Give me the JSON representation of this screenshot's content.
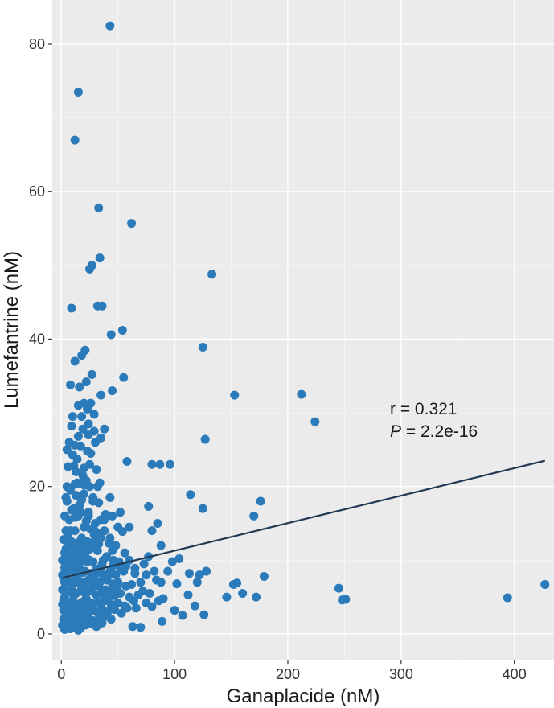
{
  "chart_data": {
    "type": "scatter",
    "xlabel": "Ganaplacide (nM)",
    "ylabel": "Lumefantrine (nM)",
    "xlim": [
      -8,
      435
    ],
    "ylim": [
      -3.5,
      86
    ],
    "x_ticks": [
      0,
      100,
      200,
      300,
      400
    ],
    "y_ticks": [
      0,
      20,
      40,
      60,
      80
    ],
    "grid": true,
    "legend": "none",
    "colors": {
      "panel": "#ebebeb",
      "grid": "#ffffff",
      "point": "#2b7bba",
      "trend": "#1f3a52",
      "text": "#333333"
    },
    "annotation": {
      "r_text": "r = 0.321",
      "p_label": "P",
      "p_value": " = 2.2e-16"
    },
    "trend_line": {
      "x": [
        1,
        427
      ],
      "y": [
        7.6,
        23.5
      ]
    },
    "points": [
      [
        43,
        82.5
      ],
      [
        15,
        73.5
      ],
      [
        12,
        67
      ],
      [
        62,
        55.7
      ],
      [
        33,
        57.8
      ],
      [
        34,
        51
      ],
      [
        27,
        50
      ],
      [
        25,
        49.5
      ],
      [
        133,
        48.8
      ],
      [
        9,
        44.2
      ],
      [
        32,
        44.5
      ],
      [
        36,
        44.5
      ],
      [
        44,
        40.6
      ],
      [
        54,
        41.2
      ],
      [
        125,
        38.9
      ],
      [
        21,
        38.5
      ],
      [
        18,
        37.8
      ],
      [
        12,
        37
      ],
      [
        22,
        34.2
      ],
      [
        55,
        34.8
      ],
      [
        45,
        33
      ],
      [
        35,
        32.4
      ],
      [
        153,
        32.4
      ],
      [
        212,
        32.5
      ],
      [
        20,
        31.3
      ],
      [
        26,
        31.3
      ],
      [
        23,
        30.5
      ],
      [
        10,
        29.5
      ],
      [
        224,
        28.8
      ],
      [
        24,
        28.5
      ],
      [
        9,
        28.2
      ],
      [
        19,
        27.8
      ],
      [
        29,
        27.5
      ],
      [
        15,
        26.8
      ],
      [
        35,
        26.6
      ],
      [
        127,
        26.4
      ],
      [
        7,
        26
      ],
      [
        30,
        26
      ],
      [
        17,
        25.5
      ],
      [
        26,
        24.5
      ],
      [
        58,
        23.4
      ],
      [
        80,
        23
      ],
      [
        87,
        23
      ],
      [
        96,
        23
      ],
      [
        11,
        22.8
      ],
      [
        25,
        23
      ],
      [
        13,
        22
      ],
      [
        19,
        21.5
      ],
      [
        22,
        20.8
      ],
      [
        5,
        20
      ],
      [
        12,
        20.3
      ],
      [
        14,
        20.5
      ],
      [
        17,
        20.4
      ],
      [
        20,
        20.2
      ],
      [
        25,
        20
      ],
      [
        34,
        20.5
      ],
      [
        114,
        18.9
      ],
      [
        43,
        18.5
      ],
      [
        5,
        18
      ],
      [
        18,
        18.2
      ],
      [
        28,
        18
      ],
      [
        33,
        17.8
      ],
      [
        77,
        17.3
      ],
      [
        125,
        17
      ],
      [
        176,
        18
      ],
      [
        170,
        16
      ],
      [
        45,
        16
      ],
      [
        38,
        15.5
      ],
      [
        52,
        16.5
      ],
      [
        9,
        16.8
      ],
      [
        15,
        16
      ],
      [
        22,
        15.3
      ],
      [
        30,
        15
      ],
      [
        85,
        15
      ],
      [
        60,
        14.5
      ],
      [
        26,
        14.2
      ],
      [
        50,
        14.5
      ],
      [
        54,
        13.9
      ],
      [
        80,
        14
      ],
      [
        4,
        14
      ],
      [
        12,
        14
      ],
      [
        18,
        13
      ],
      [
        23,
        12.5
      ],
      [
        29,
        13.5
      ],
      [
        35,
        13
      ],
      [
        42,
        12.3
      ],
      [
        6,
        12.5
      ],
      [
        10,
        12
      ],
      [
        15,
        11.5
      ],
      [
        20,
        11
      ],
      [
        25,
        11.5
      ],
      [
        32,
        11.3
      ],
      [
        56,
        11
      ],
      [
        88,
        12
      ],
      [
        3,
        11
      ],
      [
        8,
        10.5
      ],
      [
        13,
        10
      ],
      [
        17,
        9.8
      ],
      [
        22,
        10.3
      ],
      [
        28,
        9.8
      ],
      [
        36,
        9.5
      ],
      [
        40,
        10.5
      ],
      [
        46,
        10
      ],
      [
        51,
        9.8
      ],
      [
        60,
        10
      ],
      [
        77,
        10.5
      ],
      [
        98,
        9.8
      ],
      [
        104,
        10.2
      ],
      [
        3,
        9
      ],
      [
        7,
        8.8
      ],
      [
        11,
        8.5
      ],
      [
        16,
        8.8
      ],
      [
        21,
        8.5
      ],
      [
        26,
        8.2
      ],
      [
        31,
        8.8
      ],
      [
        37,
        8
      ],
      [
        43,
        8.5
      ],
      [
        48,
        8
      ],
      [
        55,
        8.5
      ],
      [
        65,
        8.2
      ],
      [
        75,
        8
      ],
      [
        82,
        8.5
      ],
      [
        113,
        8.2
      ],
      [
        122,
        8
      ],
      [
        128,
        8.5
      ],
      [
        179,
        7.8
      ],
      [
        2,
        7.5
      ],
      [
        6,
        7.3
      ],
      [
        10,
        7
      ],
      [
        14,
        7.5
      ],
      [
        19,
        7
      ],
      [
        24,
        7.3
      ],
      [
        29,
        6.8
      ],
      [
        34,
        7
      ],
      [
        40,
        7.3
      ],
      [
        45,
        6.8
      ],
      [
        50,
        7
      ],
      [
        57,
        6.5
      ],
      [
        70,
        7
      ],
      [
        88,
        7
      ],
      [
        102,
        6.8
      ],
      [
        120,
        7
      ],
      [
        152,
        6.7
      ],
      [
        155,
        6.9
      ],
      [
        245,
        6.2
      ],
      [
        427,
        6.7
      ],
      [
        2,
        6
      ],
      [
        5,
        5.8
      ],
      [
        9,
        6
      ],
      [
        13,
        5.5
      ],
      [
        17,
        5.8
      ],
      [
        21,
        5.5
      ],
      [
        26,
        5.8
      ],
      [
        31,
        5.3
      ],
      [
        36,
        5.5
      ],
      [
        42,
        5.8
      ],
      [
        47,
        5.2
      ],
      [
        52,
        5.5
      ],
      [
        60,
        5
      ],
      [
        68,
        5.3
      ],
      [
        78,
        5.5
      ],
      [
        90,
        4.8
      ],
      [
        112,
        5.3
      ],
      [
        160,
        5.5
      ],
      [
        172,
        5
      ],
      [
        2,
        4.5
      ],
      [
        6,
        4.2
      ],
      [
        10,
        4.5
      ],
      [
        14,
        4
      ],
      [
        18,
        4.3
      ],
      [
        23,
        4.5
      ],
      [
        28,
        4
      ],
      [
        33,
        4.3
      ],
      [
        38,
        4.5
      ],
      [
        44,
        4
      ],
      [
        50,
        4.2
      ],
      [
        56,
        3.8
      ],
      [
        64,
        4.5
      ],
      [
        75,
        4.2
      ],
      [
        86,
        4.5
      ],
      [
        146,
        5
      ],
      [
        248,
        4.6
      ],
      [
        251,
        4.7
      ],
      [
        394,
        4.9
      ],
      [
        2,
        3.2
      ],
      [
        5,
        3.5
      ],
      [
        9,
        3
      ],
      [
        13,
        3.3
      ],
      [
        17,
        3
      ],
      [
        21,
        3.5
      ],
      [
        26,
        3.2
      ],
      [
        31,
        3
      ],
      [
        36,
        3.4
      ],
      [
        41,
        3
      ],
      [
        47,
        3.3
      ],
      [
        53,
        2.8
      ],
      [
        58,
        3.5
      ],
      [
        2,
        2
      ],
      [
        6,
        2.3
      ],
      [
        10,
        1.8
      ],
      [
        14,
        2.2
      ],
      [
        18,
        2
      ],
      [
        23,
        2.3
      ],
      [
        28,
        1.8
      ],
      [
        33,
        2
      ],
      [
        39,
        2.4
      ],
      [
        44,
        2
      ],
      [
        107,
        2.5
      ],
      [
        126,
        2.6
      ],
      [
        1,
        1.2
      ],
      [
        5,
        1.4
      ],
      [
        9,
        1
      ],
      [
        13,
        1.3
      ],
      [
        17,
        0.8
      ],
      [
        21,
        1.2
      ],
      [
        26,
        1.4
      ],
      [
        31,
        1
      ],
      [
        36,
        1.5
      ],
      [
        63,
        1
      ],
      [
        70,
        0.9
      ],
      [
        89,
        1.7
      ],
      [
        3,
        0.6
      ],
      [
        8,
        0.7
      ],
      [
        15,
        0.5
      ],
      [
        4,
        8
      ],
      [
        8,
        9.5
      ],
      [
        12,
        11
      ],
      [
        16,
        12.5
      ],
      [
        20,
        14.5
      ],
      [
        24,
        16.5
      ],
      [
        28,
        18.5
      ],
      [
        32,
        20
      ],
      [
        7,
        15.5
      ],
      [
        11,
        17
      ],
      [
        3,
        16
      ],
      [
        6,
        13.5
      ],
      [
        9,
        12.5
      ],
      [
        14,
        9.3
      ],
      [
        18,
        6.5
      ],
      [
        22,
        4.8
      ],
      [
        27,
        6.3
      ],
      [
        32,
        8.3
      ],
      [
        37,
        10
      ],
      [
        41,
        7.8
      ],
      [
        46,
        9.3
      ],
      [
        3,
        5
      ],
      [
        7,
        3.8
      ],
      [
        11,
        5.2
      ],
      [
        15,
        7
      ],
      [
        19,
        8.3
      ],
      [
        23,
        9.8
      ],
      [
        27,
        11.8
      ],
      [
        31,
        13.8
      ],
      [
        35,
        15.5
      ],
      [
        39,
        16.2
      ],
      [
        1,
        10
      ],
      [
        4,
        11.5
      ],
      [
        8,
        14
      ],
      [
        12,
        15.8
      ],
      [
        16,
        17.5
      ],
      [
        20,
        19
      ],
      [
        24,
        16
      ],
      [
        28,
        14.3
      ],
      [
        33,
        12.2
      ],
      [
        38,
        14
      ],
      [
        43,
        13
      ],
      [
        48,
        12
      ],
      [
        1,
        4
      ],
      [
        1,
        6
      ],
      [
        1,
        8
      ],
      [
        2,
        12.8
      ],
      [
        3,
        7
      ],
      [
        5,
        9.5
      ],
      [
        6,
        2.8
      ],
      [
        7,
        11.2
      ],
      [
        9,
        6.7
      ],
      [
        11,
        3.9
      ],
      [
        13,
        8
      ],
      [
        15,
        3
      ],
      [
        16,
        10.8
      ],
      [
        18,
        2.5
      ],
      [
        19,
        12
      ],
      [
        21,
        6.2
      ],
      [
        24,
        2.8
      ],
      [
        25,
        10
      ],
      [
        27,
        4.2
      ],
      [
        29,
        7.6
      ],
      [
        30,
        12.8
      ],
      [
        33,
        6.5
      ],
      [
        35,
        9
      ],
      [
        37,
        2.6
      ],
      [
        39,
        6
      ],
      [
        42,
        4.8
      ],
      [
        45,
        11.3
      ],
      [
        49,
        6.3
      ],
      [
        53,
        8.8
      ],
      [
        57,
        9.2
      ],
      [
        62,
        6.7
      ],
      [
        66,
        3.5
      ],
      [
        72,
        5.8
      ],
      [
        80,
        3.7
      ],
      [
        94,
        8.5
      ],
      [
        100,
        3.2
      ],
      [
        118,
        3.8
      ],
      [
        65,
        8.9
      ],
      [
        73,
        9.5
      ],
      [
        84,
        7.3
      ],
      [
        4,
        18.5
      ],
      [
        8,
        19.5
      ],
      [
        13,
        18.8
      ],
      [
        17,
        16.5
      ],
      [
        10,
        24.3
      ],
      [
        14,
        23.7
      ],
      [
        6,
        22.7
      ],
      [
        23,
        24.8
      ],
      [
        31,
        22.3
      ],
      [
        20,
        22.5
      ],
      [
        15,
        31
      ],
      [
        8,
        33.8
      ],
      [
        27,
        35.2
      ],
      [
        18,
        29.5
      ],
      [
        24,
        27
      ],
      [
        12,
        25.6
      ],
      [
        29,
        29.8
      ],
      [
        16,
        33.5
      ],
      [
        38,
        27.8
      ],
      [
        5,
        25
      ]
    ]
  }
}
